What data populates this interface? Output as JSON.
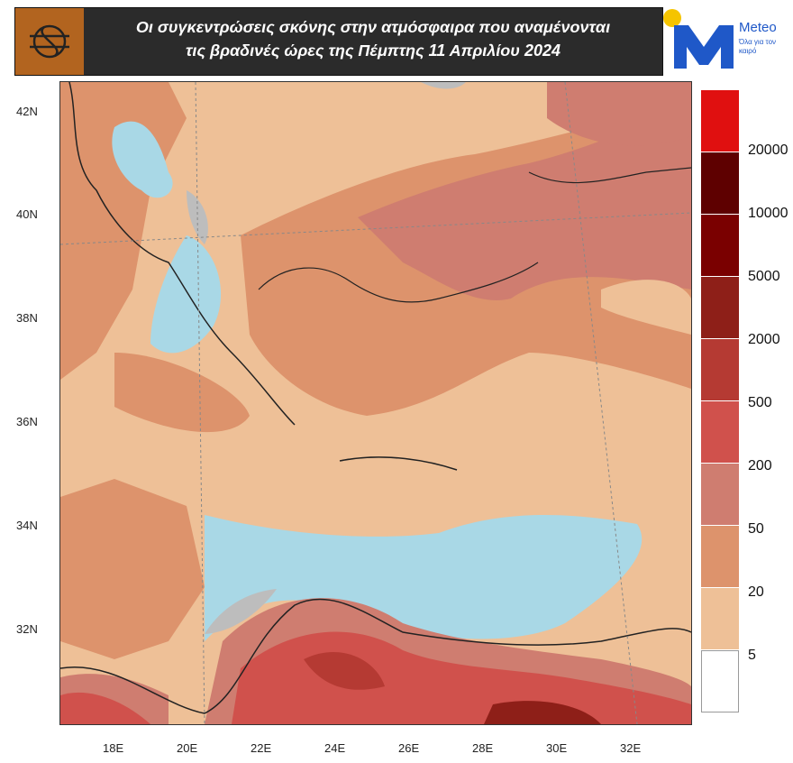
{
  "header": {
    "title_line1": "Οι συγκεντρώσεις σκόνης στην ατμόσφαιρα που αναμένονται",
    "title_line2": "τις βραδινές ώρες της Πέμπτης 11 Απριλίου 2024"
  },
  "brand": {
    "name": "Meteo",
    "tagline": "Όλα για τον καιρό"
  },
  "map": {
    "lat_labels": [
      "42N",
      "40N",
      "38N",
      "36N",
      "34N",
      "32N"
    ],
    "lon_labels": [
      "18E",
      "20E",
      "22E",
      "24E",
      "26E",
      "28E",
      "30E",
      "32E"
    ]
  },
  "legend": {
    "colors": [
      "#e01010",
      "#5e0000",
      "#7a0000",
      "#8e1f18",
      "#b53a33",
      "#d0514c",
      "#cf7d70",
      "#dd936c",
      "#eec097",
      "#ffffff"
    ],
    "labels": [
      "20000",
      "10000",
      "5000",
      "2000",
      "500",
      "200",
      "50",
      "20",
      "5"
    ]
  }
}
